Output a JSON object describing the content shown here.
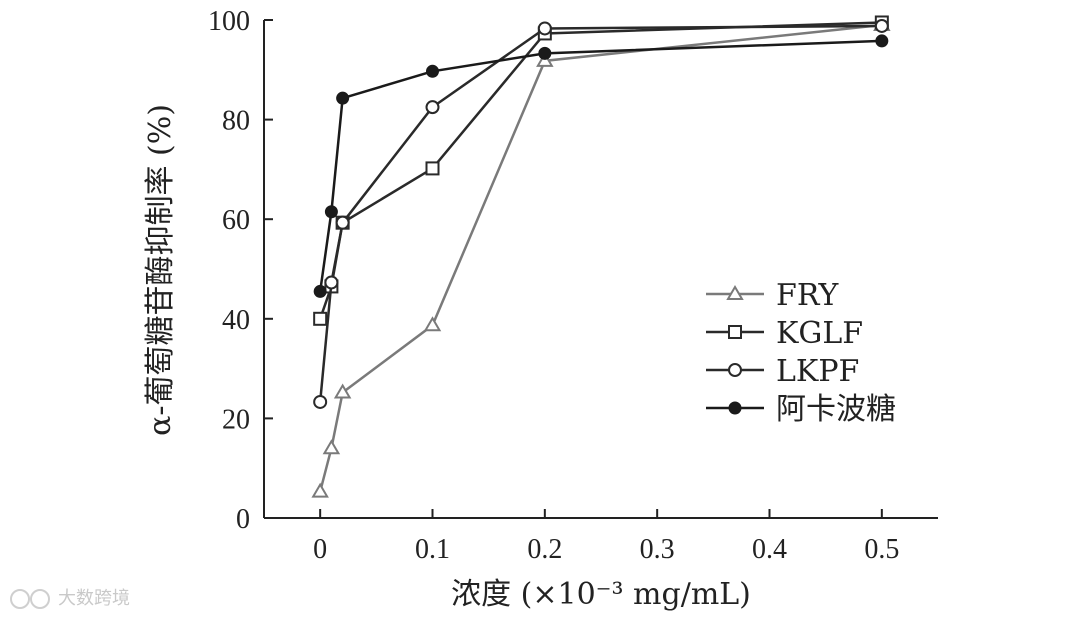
{
  "watermark": "大数跨境",
  "chart_data": {
    "type": "line",
    "xlabel": "浓度 (×10⁻³ mg/mL)",
    "ylabel": "α-葡萄糖苷酶抑制率 (%)",
    "xlim": [
      -0.05,
      0.55
    ],
    "ylim": [
      0,
      100
    ],
    "xticks": [
      0,
      0.1,
      0.2,
      0.3,
      0.4,
      0.5
    ],
    "xtick_labels": [
      "0",
      "0.1",
      "0.2",
      "0.3",
      "0.4",
      "0.5"
    ],
    "yticks": [
      0,
      20,
      40,
      60,
      80,
      100
    ],
    "ytick_labels": [
      "0",
      "20",
      "40",
      "60",
      "80",
      "100"
    ],
    "grid": false,
    "legend_position": "center-right",
    "series": [
      {
        "name": "FRY",
        "marker": "triangle-open",
        "color": "#7a7a7a",
        "x": [
          0,
          0.01,
          0.02,
          0.1,
          0.2,
          0.5
        ],
        "y": [
          5.3,
          14,
          25.2,
          38.7,
          91.8,
          99
        ]
      },
      {
        "name": "KGLF",
        "marker": "square-open",
        "color": "#2a2a2a",
        "x": [
          0,
          0.01,
          0.02,
          0.1,
          0.2,
          0.5
        ],
        "y": [
          40,
          46.5,
          59.3,
          70.2,
          97.3,
          99.5
        ]
      },
      {
        "name": "LKPF",
        "marker": "circle-open",
        "color": "#2a2a2a",
        "x": [
          0,
          0.01,
          0.02,
          0.1,
          0.2,
          0.5
        ],
        "y": [
          23.3,
          47.3,
          59.3,
          82.5,
          98.3,
          98.8
        ]
      },
      {
        "name": "阿卡波糖",
        "marker": "circle-filled",
        "color": "#1a1a1a",
        "x": [
          0,
          0.01,
          0.02,
          0.1,
          0.2,
          0.5
        ],
        "y": [
          45.5,
          61.5,
          84.3,
          89.7,
          93.3,
          95.8
        ]
      }
    ]
  }
}
